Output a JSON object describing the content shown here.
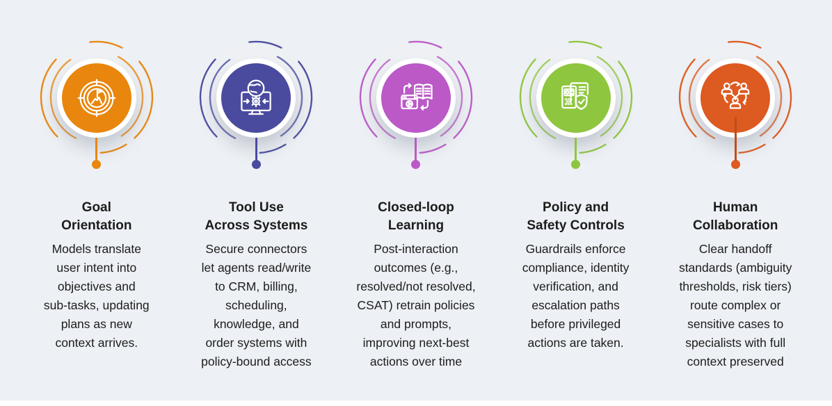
{
  "page": {
    "background_color": "#edf0f4",
    "text_color": "#1c1c1c",
    "footer_bar_color": "#ffffff"
  },
  "cards": [
    {
      "title_lines": [
        "Goal",
        "Orientation"
      ],
      "description": "Models translate\nuser intent into\nobjectives and\nsub-tasks, updating\nplans as new\ncontext arrives.",
      "color": "#E8860D",
      "icon": "goal-target-icon"
    },
    {
      "title_lines": [
        "Tool Use",
        "Across Systems"
      ],
      "description": "Secure connectors\nlet agents read/write\nto CRM, billing,\nscheduling,\nknowledge, and\norder systems with\npolicy-bound access",
      "color": "#4A4B9F",
      "icon": "monitor-globe-gear-icon"
    },
    {
      "title_lines": [
        "Closed-loop",
        "Learning"
      ],
      "description": "Post-interaction\noutcomes (e.g.,\nresolved/not resolved,\nCSAT) retrain policies\nand prompts,\nimproving next-best\nactions over time",
      "color": "#BB59C7",
      "icon": "book-learning-loop-icon"
    },
    {
      "title_lines": [
        "Policy and",
        "Safety Controls"
      ],
      "description": "Guardrails enforce\ncompliance, identity\nverification, and\nescalation paths\nbefore privileged\nactions are taken.",
      "color": "#8FC63F",
      "icon": "policy-shield-icon"
    },
    {
      "title_lines": [
        "Human",
        "Collaboration"
      ],
      "description": "Clear handoff\nstandards (ambiguity\nthresholds, risk tiers)\nroute complex or\nsensitive cases to\nspecialists with full\ncontext preserved",
      "color": "#DD5A20",
      "icon": "people-cycle-icon"
    }
  ]
}
